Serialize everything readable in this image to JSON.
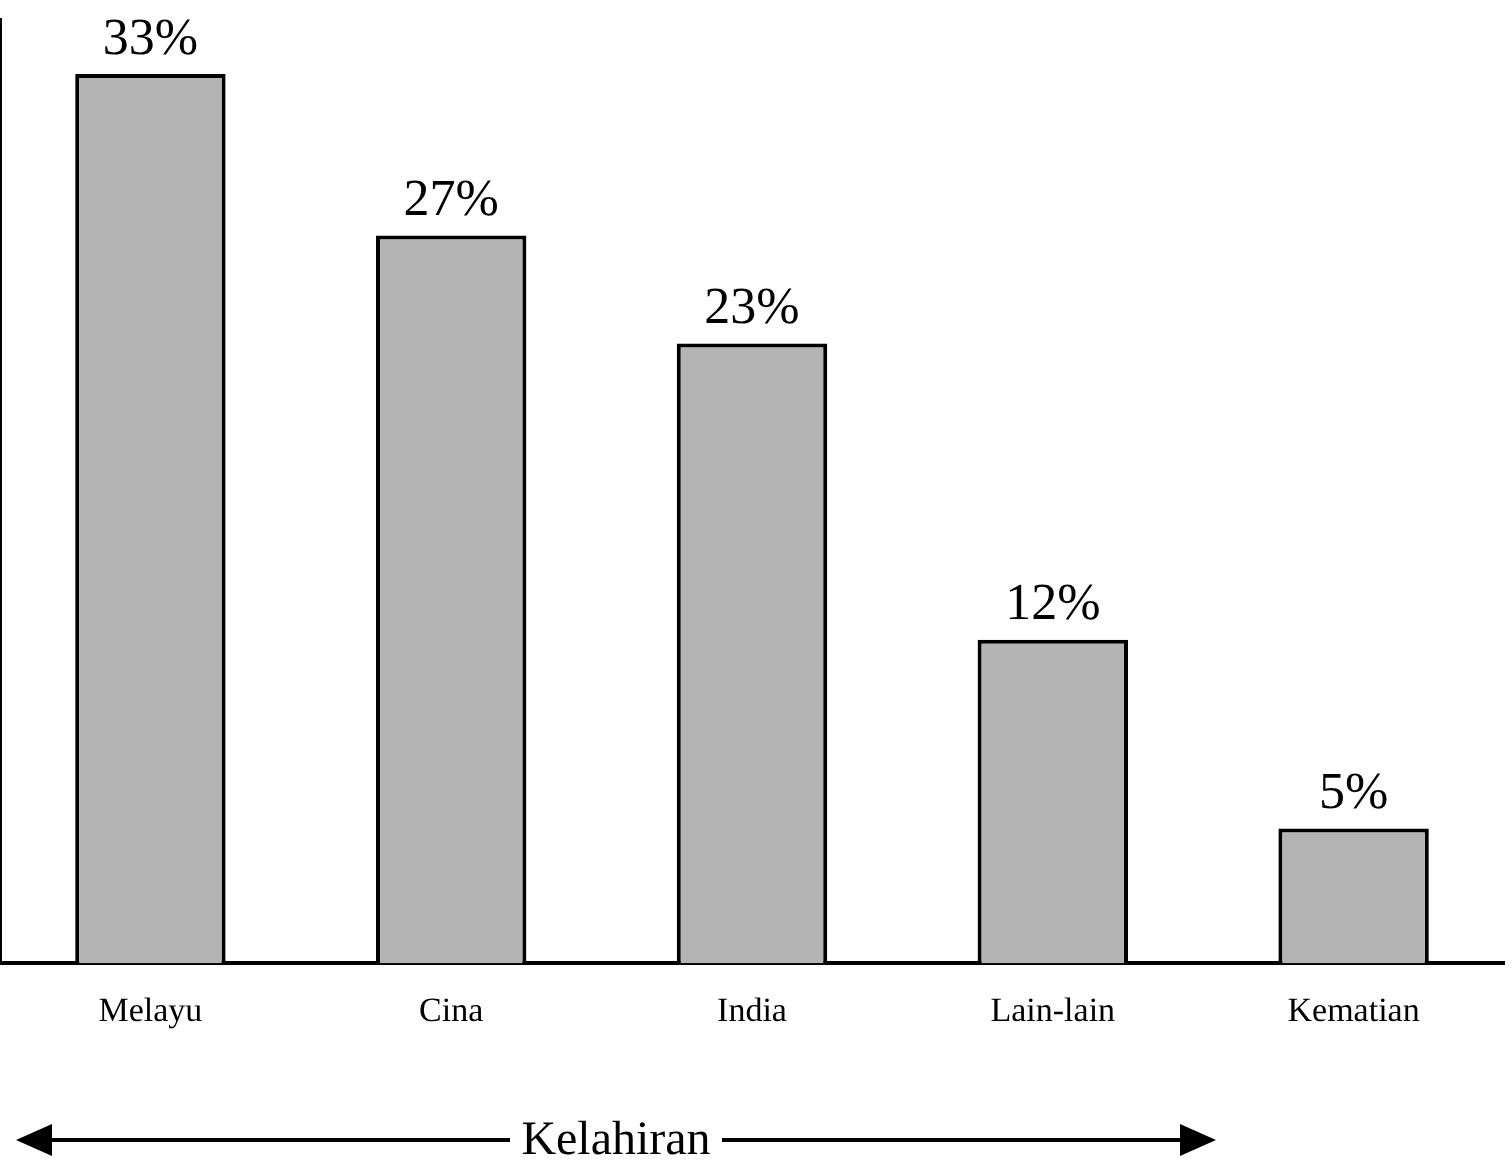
{
  "chart_data": {
    "type": "bar",
    "categories": [
      "Melayu",
      "Cina",
      "India",
      "Lain-lain",
      "Kematian"
    ],
    "values": [
      33,
      27,
      23,
      12,
      5
    ],
    "value_labels": [
      "33%",
      "27%",
      "23%",
      "12%",
      "5%"
    ],
    "color": "#b4b4b4",
    "grid": false,
    "tick_labels": "x",
    "legend": false,
    "annotations": [
      "Kelahiran"
    ]
  }
}
